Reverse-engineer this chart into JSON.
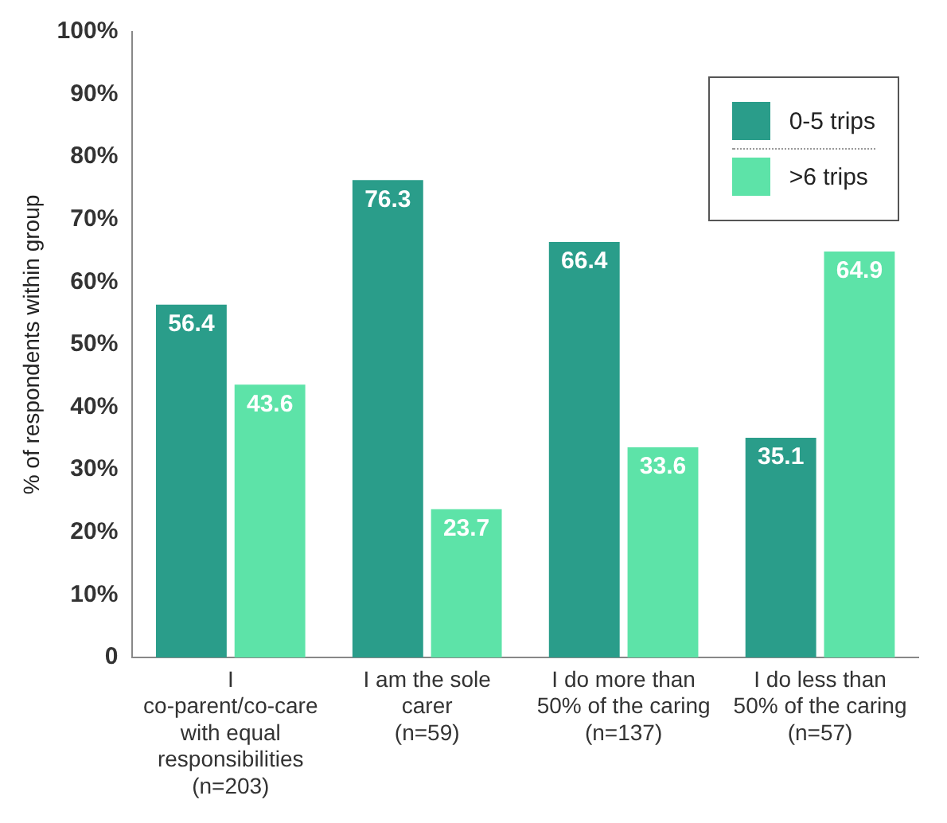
{
  "chart_data": {
    "type": "bar",
    "ylabel": "% of respondents within group",
    "categories": [
      "I co-parent/co-care with equal responsibilities (n=203)",
      "I am the sole carer (n=59)",
      "I do more than 50% of the caring (n=137)",
      "I do less than 50% of the caring (n=57)"
    ],
    "series": [
      {
        "name": "0-5 trips",
        "color": "#2a9d8a",
        "values": [
          56.4,
          76.3,
          66.4,
          35.1
        ]
      },
      {
        "name": ">6 trips",
        "color": "#5de3a8",
        "values": [
          43.6,
          23.7,
          33.6,
          64.9
        ]
      }
    ],
    "ylim": [
      0,
      100
    ],
    "yticks": [
      {
        "value": 0,
        "label": "0"
      },
      {
        "value": 10,
        "label": "10%"
      },
      {
        "value": 20,
        "label": "20%"
      },
      {
        "value": 30,
        "label": "30%"
      },
      {
        "value": 40,
        "label": "40%"
      },
      {
        "value": 50,
        "label": "50%"
      },
      {
        "value": 60,
        "label": "60%"
      },
      {
        "value": 70,
        "label": "70%"
      },
      {
        "value": 80,
        "label": "80%"
      },
      {
        "value": 90,
        "label": "90%"
      },
      {
        "value": 100,
        "label": "100%"
      }
    ],
    "grid": false,
    "legend": "top right",
    "data_labels": true
  }
}
